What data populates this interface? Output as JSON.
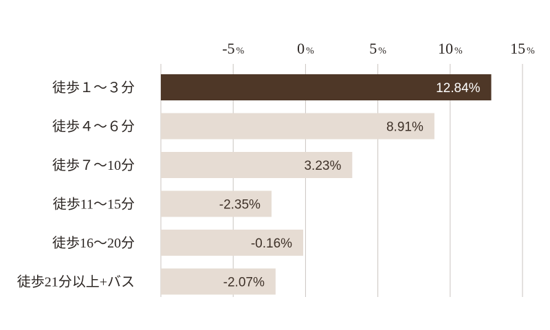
{
  "chart_data": {
    "type": "bar",
    "orientation": "horizontal",
    "categories": [
      "徒歩１〜３分",
      "徒歩４〜６分",
      "徒歩７〜10分",
      "徒歩11〜15分",
      "徒歩16〜20分",
      "徒歩21分以上+バス"
    ],
    "values": [
      12.84,
      8.91,
      3.23,
      -2.35,
      -0.16,
      -2.07
    ],
    "value_labels": [
      "12.84%",
      "8.91%",
      "3.23%",
      "-2.35%",
      "-0.16%",
      "-2.07%"
    ],
    "x_ticks": [
      {
        "value": -5,
        "num": "-5",
        "unit": "%"
      },
      {
        "value": 0,
        "num": "0",
        "unit": "%"
      },
      {
        "value": 5,
        "num": "5",
        "unit": "%"
      },
      {
        "value": 10,
        "num": "10",
        "unit": "%"
      },
      {
        "value": 15,
        "num": "15",
        "unit": "%"
      }
    ],
    "xlim": [
      -10,
      15
    ],
    "grid": true,
    "title": "",
    "xlabel": "",
    "ylabel": "",
    "colors": {
      "highlight_bar": "#4e3727",
      "bar": "#e6dcd3",
      "highlight_label": "#ffffff",
      "label": "#3e3128",
      "grid": "#c9c3bf"
    }
  }
}
